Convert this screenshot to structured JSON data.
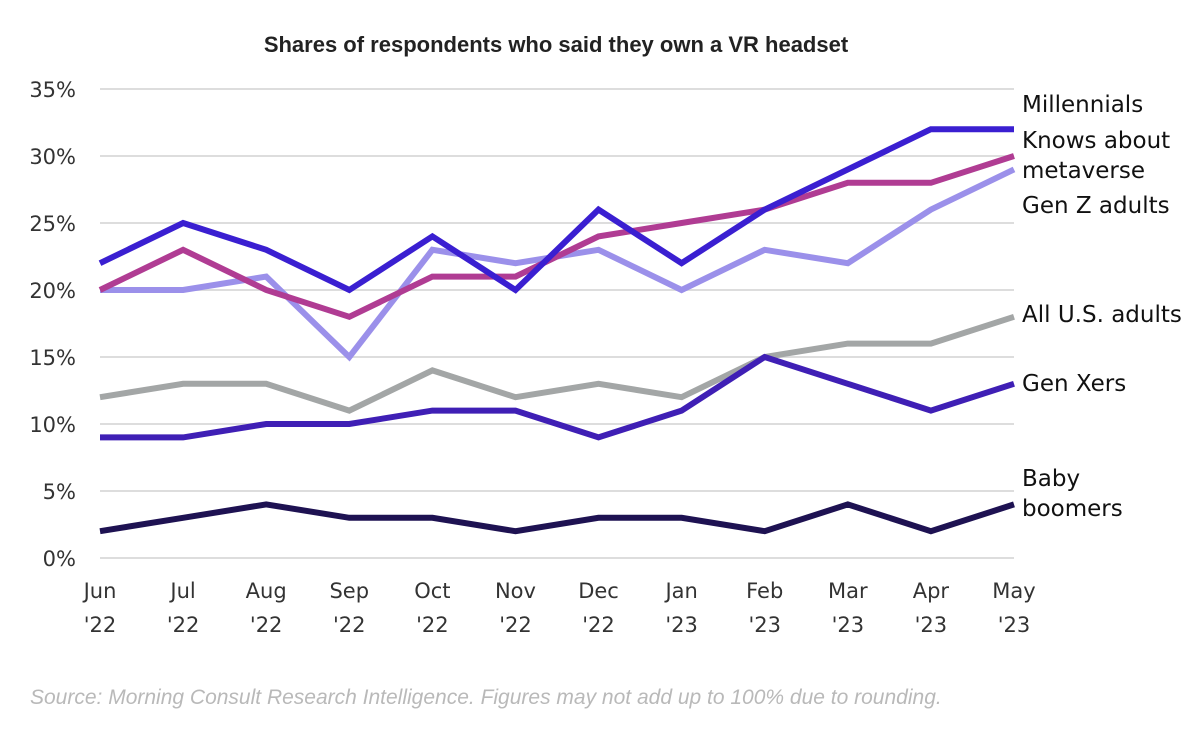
{
  "chart_data": {
    "type": "line",
    "title": "Shares of respondents who said they own a VR headset",
    "xlabel": "",
    "ylabel": "",
    "ylim": [
      0,
      35
    ],
    "yticks": [
      0,
      5,
      10,
      15,
      20,
      25,
      30,
      35
    ],
    "ytick_labels": [
      "0%",
      "5%",
      "10%",
      "15%",
      "20%",
      "25%",
      "30%",
      "35%"
    ],
    "grid": true,
    "legend_placement": "right (direct labels at line ends)",
    "categories": [
      {
        "month": "Jun",
        "year": "'22"
      },
      {
        "month": "Jul",
        "year": "'22"
      },
      {
        "month": "Aug",
        "year": "'22"
      },
      {
        "month": "Sep",
        "year": "'22"
      },
      {
        "month": "Oct",
        "year": "'22"
      },
      {
        "month": "Nov",
        "year": "'22"
      },
      {
        "month": "Dec",
        "year": "'22"
      },
      {
        "month": "Jan",
        "year": "'23"
      },
      {
        "month": "Feb",
        "year": "'23"
      },
      {
        "month": "Mar",
        "year": "'23"
      },
      {
        "month": "Apr",
        "year": "'23"
      },
      {
        "month": "May",
        "year": "'23"
      }
    ],
    "series": [
      {
        "name": "All U.S. adults",
        "label_lines": [
          "All U.S. adults"
        ],
        "color": "#a3a6a6",
        "values": [
          12,
          13,
          13,
          11,
          14,
          12,
          13,
          12,
          15,
          16,
          16,
          18
        ]
      },
      {
        "name": "Baby boomers",
        "label_lines": [
          "Baby",
          "boomers"
        ],
        "color": "#1e1252",
        "values": [
          2,
          3,
          4,
          3,
          3,
          2,
          3,
          3,
          2,
          4,
          2,
          4
        ]
      },
      {
        "name": "Gen Xers",
        "label_lines": [
          "Gen Xers"
        ],
        "color": "#3f1fb5",
        "values": [
          9,
          9,
          10,
          10,
          11,
          11,
          9,
          11,
          15,
          13,
          11,
          13
        ]
      },
      {
        "name": "Gen Z adults",
        "label_lines": [
          "Gen Z adults"
        ],
        "color": "#9b90ea",
        "values": [
          20,
          20,
          21,
          15,
          23,
          22,
          23,
          20,
          23,
          22,
          26,
          29
        ]
      },
      {
        "name": "Knows about metaverse",
        "label_lines": [
          "Knows about",
          "metaverse"
        ],
        "color": "#b03c93",
        "values": [
          20,
          23,
          20,
          18,
          21,
          21,
          24,
          25,
          26,
          28,
          28,
          30
        ]
      },
      {
        "name": "Millennials",
        "label_lines": [
          "Millennials"
        ],
        "color": "#3a1fd1",
        "values": [
          22,
          25,
          23,
          20,
          24,
          20,
          26,
          22,
          26,
          29,
          32,
          32
        ]
      }
    ],
    "source": "Source: Morning Consult Research Intelligence. Figures may not add up to 100% due to rounding."
  }
}
